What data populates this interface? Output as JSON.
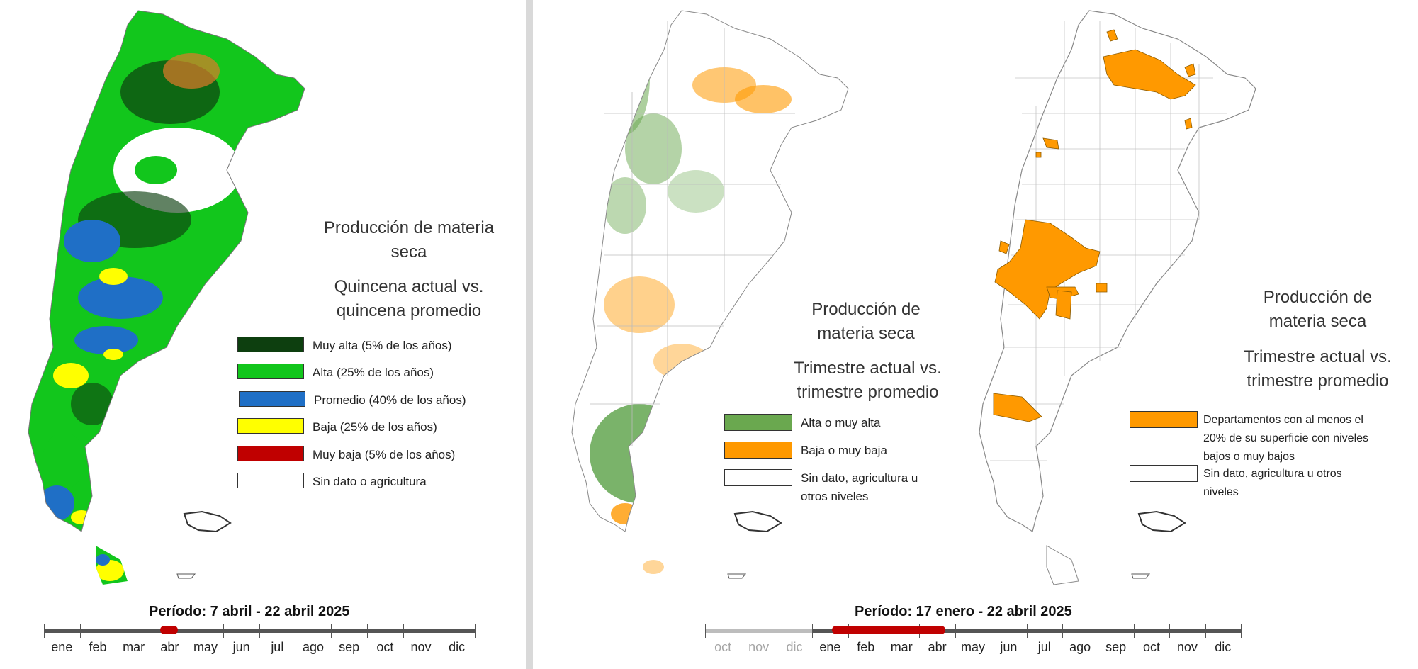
{
  "colors": {
    "muy_alta": "#0d3f0f",
    "alta": "#12c61c",
    "promedio": "#1f6fc6",
    "baja": "#ffff00",
    "muy_baja": "#c00000",
    "sin_dato": "#ffffff",
    "alta_o_muy_alta": "#6aa84f",
    "baja_o_muy_baja": "#ff9900",
    "timeline_selection": "#c00000"
  },
  "left_panel": {
    "title_line1": "Producción de materia",
    "title_line2": "seca",
    "subtitle_line1": "Quincena actual vs.",
    "subtitle_line2": "quincena  promedio",
    "legend": [
      {
        "label": "Muy alta (5% de los años)",
        "color": "#0d3f0f"
      },
      {
        "label": "Alta (25% de los años)",
        "color": "#12c61c"
      },
      {
        "label": "Promedio (40% de los años)",
        "color": "#1f6fc6"
      },
      {
        "label": "Baja (25% de los años)",
        "color": "#ffff00"
      },
      {
        "label": "Muy baja (5% de los años)",
        "color": "#c00000"
      },
      {
        "label": "Sin dato o agricultura",
        "color": "#ffffff"
      }
    ],
    "period_label": "Período:  7 abril  - 22 abril 2025",
    "months": [
      "ene",
      "feb",
      "mar",
      "abr",
      "may",
      "jun",
      "jul",
      "ago",
      "sep",
      "oct",
      "nov",
      "dic"
    ],
    "selection": {
      "start_month_index": 3,
      "start_fraction": 0.23,
      "end_month_index": 3,
      "end_fraction": 0.73
    }
  },
  "middle_panel": {
    "title_line1": "Producción de",
    "title_line2": "materia seca",
    "subtitle_line1": "Trimestre actual vs.",
    "subtitle_line2": "trimestre promedio",
    "legend": [
      {
        "label": "Alta o muy alta",
        "color": "#6aa84f"
      },
      {
        "label": "Baja o muy baja",
        "color": "#ff9900"
      },
      {
        "label_line1": "Sin dato, agricultura u",
        "label_line2": "otros niveles",
        "color": "#ffffff"
      }
    ]
  },
  "right_panel": {
    "title_line1": "Producción de",
    "title_line2": "materia seca",
    "subtitle_line1": "Trimestre actual vs.",
    "subtitle_line2": "trimestre promedio",
    "legend": [
      {
        "label_line1": "Departamentos con al menos el",
        "label_line2": "20% de su superficie con niveles",
        "label_line3": "bajos o muy bajos",
        "color": "#ff9900"
      },
      {
        "label_line1": "Sin dato, agricultura u otros",
        "label_line2": "niveles",
        "color": "#ffffff"
      }
    ]
  },
  "right_timeline": {
    "period_label": "Período:  17 enero  - 22 abril 2025",
    "previous_months": [
      "oct",
      "nov",
      "dic"
    ],
    "months": [
      "ene",
      "feb",
      "mar",
      "abr",
      "may",
      "jun",
      "jul",
      "ago",
      "sep",
      "oct",
      "nov",
      "dic"
    ],
    "selection": {
      "start_month_index": 0,
      "start_fraction": 0.55,
      "end_month_index": 3,
      "end_fraction": 0.73
    }
  }
}
